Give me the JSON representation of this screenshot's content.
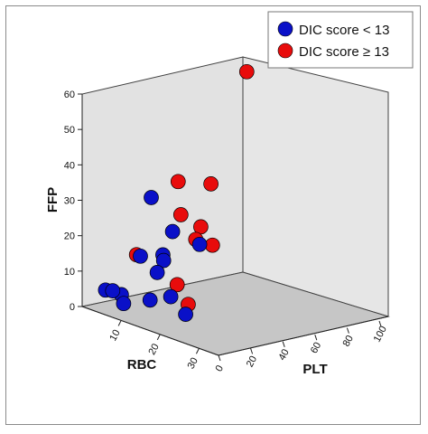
{
  "chart_data": {
    "type": "scatter",
    "projection": "3d",
    "axes": {
      "x": {
        "label": "RBC",
        "ticks": [
          "10",
          "20",
          "30"
        ],
        "range": [
          0,
          35
        ]
      },
      "y": {
        "label": "PLT",
        "ticks": [
          "0",
          "20",
          "40",
          "60",
          "80",
          "100"
        ],
        "range": [
          0,
          100
        ]
      },
      "z": {
        "label": "FFP",
        "ticks": [
          "0",
          "10",
          "20",
          "30",
          "40",
          "50",
          "60"
        ],
        "range": [
          0,
          60
        ]
      }
    },
    "legend": {
      "placement": "top-right",
      "entries": [
        {
          "label": "DIC score < 13",
          "color": "#0a10c8"
        },
        {
          "label": "DIC score ≥ 13",
          "color": "#e80c0c"
        }
      ]
    },
    "series": [
      {
        "name": "DIC score < 13",
        "color": "#0a10c8",
        "points": [
          {
            "x": 6,
            "y": 0,
            "z": 7
          },
          {
            "x": 7,
            "y": 2,
            "z": 7
          },
          {
            "x": 8,
            "y": 5,
            "z": 6
          },
          {
            "x": 9,
            "y": 4,
            "z": 4
          },
          {
            "x": 10,
            "y": 18,
            "z": 4
          },
          {
            "x": 12,
            "y": 26,
            "z": 5
          },
          {
            "x": 15,
            "y": 28,
            "z": 1
          },
          {
            "x": 10,
            "y": 12,
            "z": 17
          },
          {
            "x": 11,
            "y": 20,
            "z": 12
          },
          {
            "x": 11,
            "y": 24,
            "z": 15
          },
          {
            "x": 10,
            "y": 26,
            "z": 16
          },
          {
            "x": 10,
            "y": 32,
            "z": 22
          },
          {
            "x": 7,
            "y": 26,
            "z": 31
          },
          {
            "x": 12,
            "y": 44,
            "z": 18
          }
        ]
      },
      {
        "name": "DIC score ≥ 13",
        "color": "#e80c0c",
        "points": [
          {
            "x": 9,
            "y": 12,
            "z": 17
          },
          {
            "x": 14,
            "y": 32,
            "z": 3
          },
          {
            "x": 12,
            "y": 30,
            "z": 8
          },
          {
            "x": 8,
            "y": 42,
            "z": 25
          },
          {
            "x": 11,
            "y": 44,
            "z": 19
          },
          {
            "x": 12,
            "y": 52,
            "z": 17
          },
          {
            "x": 9,
            "y": 52,
            "z": 21
          },
          {
            "x": 4,
            "y": 50,
            "z": 32
          },
          {
            "x": 5,
            "y": 68,
            "z": 30
          },
          {
            "x": 1,
            "y": 100,
            "z": 57
          }
        ]
      }
    ]
  }
}
